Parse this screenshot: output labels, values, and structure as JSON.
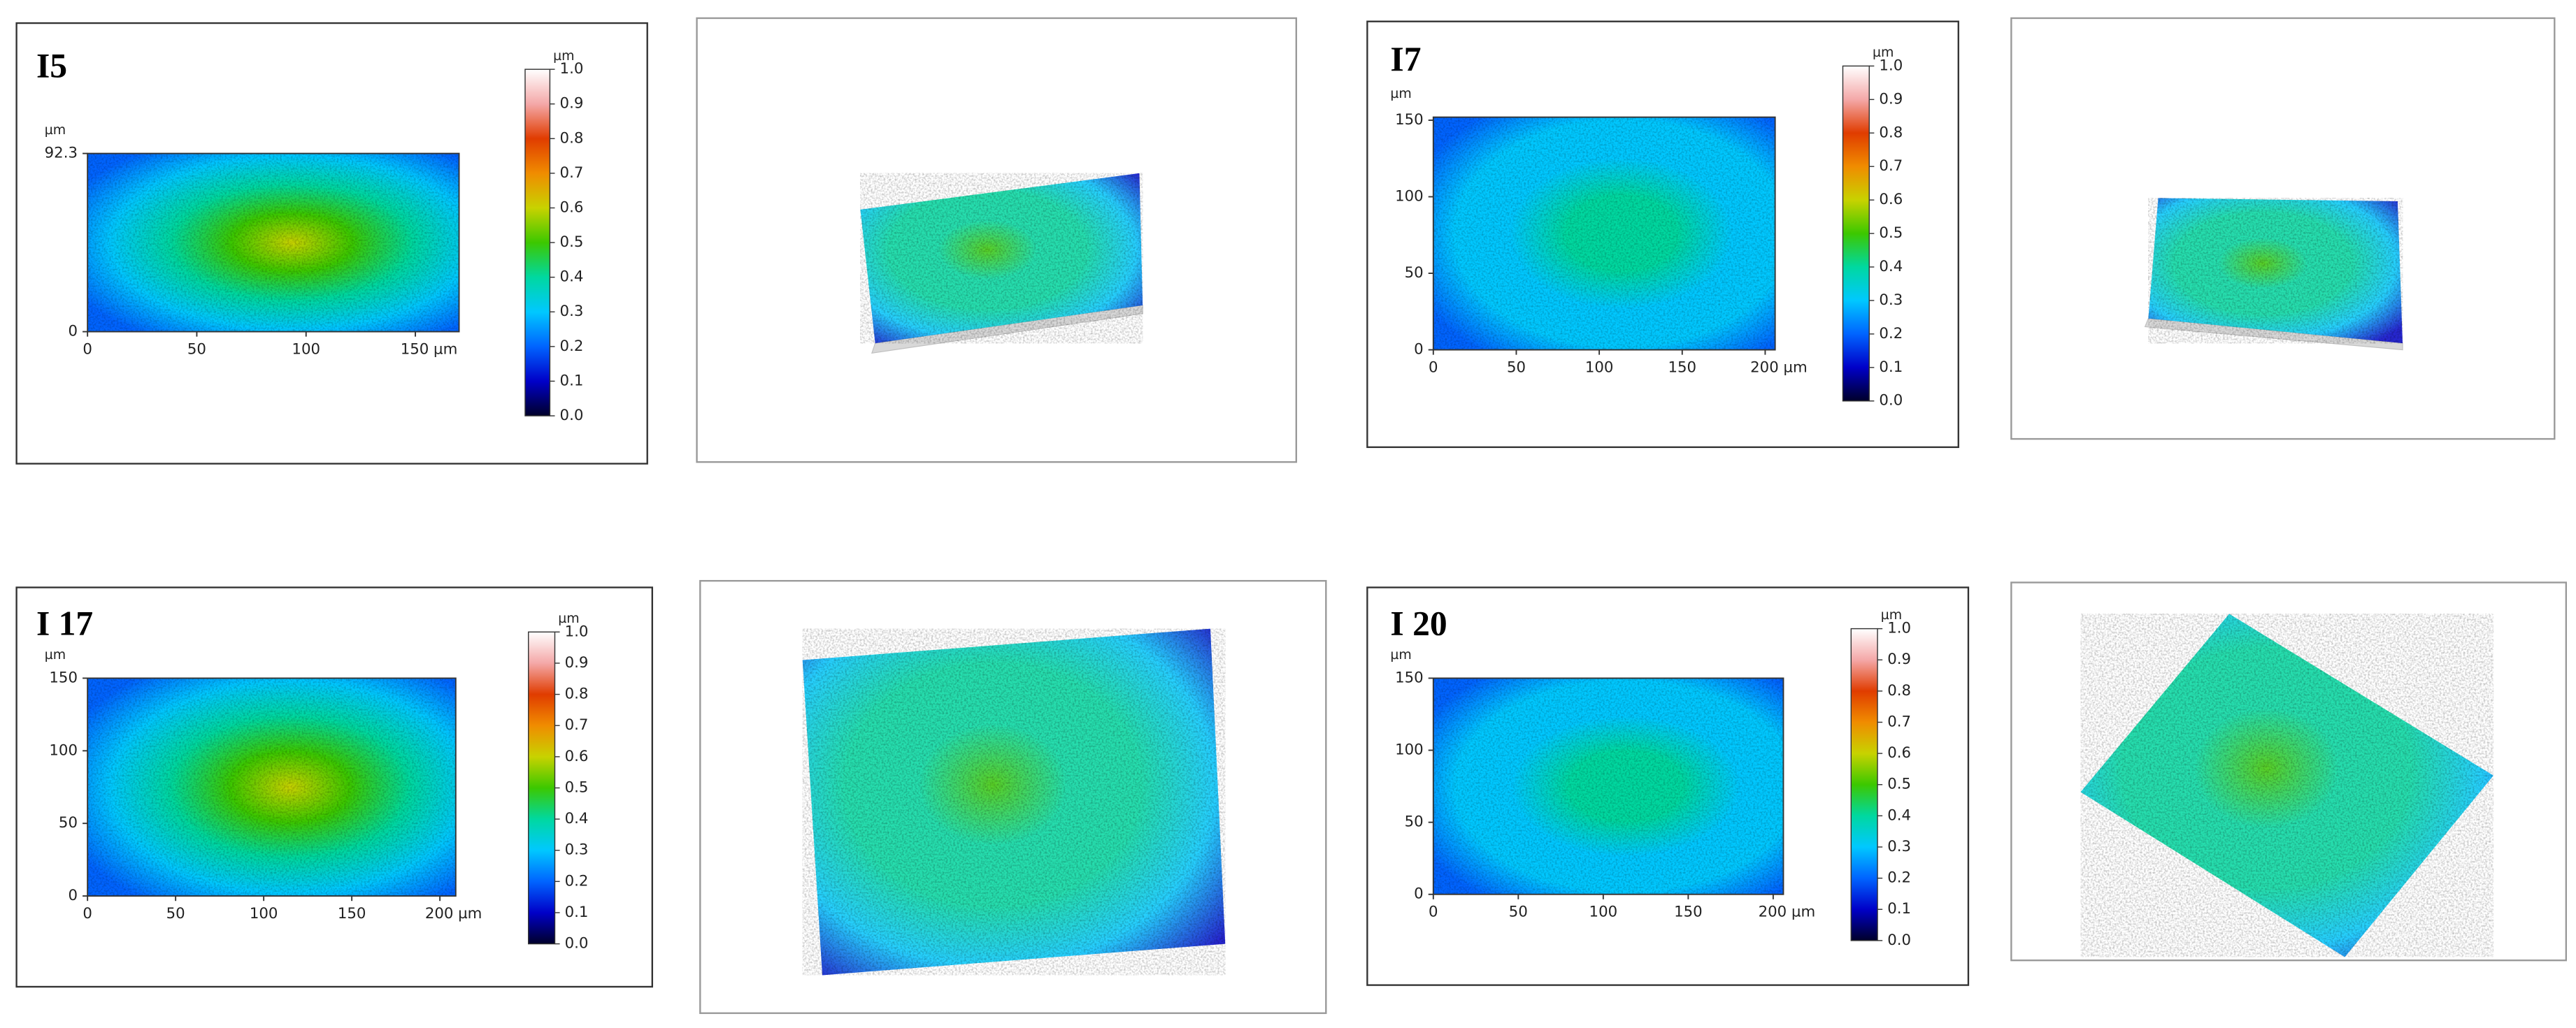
{
  "chart_data": [
    {
      "type": "heatmap",
      "title": "I5",
      "y_unit": "µm",
      "xlim": [
        0,
        170
      ],
      "ylim": [
        0,
        92.3
      ],
      "xticks": [
        0,
        50,
        100,
        {
          "value": 150,
          "label": "150 µm"
        }
      ],
      "yticks": [
        0,
        92.3
      ],
      "colormap": [
        "#00002a",
        "#0000c8",
        "#0064ff",
        "#00c8ff",
        "#00d8a0",
        "#3cc800",
        "#c8d200",
        "#f08c00",
        "#e03c00",
        "#f4a8a8",
        "#ffffff"
      ],
      "colorbar": {
        "unit": "µm",
        "lim": [
          0,
          1
        ],
        "ticks": [
          {
            "value": 0,
            "label": "0.0"
          },
          0.1,
          0.2,
          0.3,
          0.4,
          0.5,
          0.6,
          0.7,
          0.8,
          0.9,
          {
            "value": 1,
            "label": "1.0"
          }
        ]
      }
    },
    {
      "type": "heatmap",
      "title": "I7",
      "y_unit": "µm",
      "xlim": [
        0,
        206
      ],
      "ylim": [
        0,
        152
      ],
      "xticks": [
        0,
        50,
        100,
        150,
        {
          "value": 200,
          "label": "200 µm"
        }
      ],
      "yticks": [
        0,
        50,
        100,
        150
      ],
      "colormap": [
        "#00002a",
        "#0000c8",
        "#0064ff",
        "#00c8ff",
        "#00d8a0",
        "#3cc800",
        "#c8d200",
        "#f08c00",
        "#e03c00",
        "#f4a8a8",
        "#ffffff"
      ],
      "colorbar": {
        "unit": "µm",
        "lim": [
          0,
          1
        ],
        "ticks": [
          {
            "value": 0,
            "label": "0.0"
          },
          0.1,
          0.2,
          0.3,
          0.4,
          0.5,
          0.6,
          0.7,
          0.8,
          0.9,
          {
            "value": 1,
            "label": "1.0"
          }
        ]
      }
    },
    {
      "type": "heatmap",
      "title": "I 17",
      "y_unit": "µm",
      "xlim": [
        0,
        209
      ],
      "ylim": [
        0,
        150
      ],
      "xticks": [
        0,
        50,
        100,
        150,
        {
          "value": 200,
          "label": "200 µm"
        }
      ],
      "yticks": [
        0,
        50,
        100,
        150
      ],
      "colormap": [
        "#00002a",
        "#0000c8",
        "#0064ff",
        "#00c8ff",
        "#00d8a0",
        "#3cc800",
        "#c8d200",
        "#f08c00",
        "#e03c00",
        "#f4a8a8",
        "#ffffff"
      ],
      "colorbar": {
        "unit": "µm",
        "lim": [
          0,
          1
        ],
        "ticks": [
          {
            "value": 0,
            "label": "0.0"
          },
          0.1,
          0.2,
          0.3,
          0.4,
          0.5,
          0.6,
          0.7,
          0.8,
          0.9,
          {
            "value": 1,
            "label": "1.0"
          }
        ]
      }
    },
    {
      "type": "heatmap",
      "title": "I 20",
      "y_unit": "µm",
      "xlim": [
        0,
        206
      ],
      "ylim": [
        0,
        150
      ],
      "xticks": [
        0,
        50,
        100,
        150,
        {
          "value": 200,
          "label": "200 µm"
        }
      ],
      "yticks": [
        0,
        50,
        100,
        150
      ],
      "colormap": [
        "#00002a",
        "#0000c8",
        "#0064ff",
        "#00c8ff",
        "#00d8a0",
        "#3cc800",
        "#c8d200",
        "#f08c00",
        "#e03c00",
        "#f4a8a8",
        "#ffffff"
      ],
      "colorbar": {
        "unit": "µm",
        "lim": [
          0,
          1
        ],
        "ticks": [
          {
            "value": 0,
            "label": "0.0"
          },
          0.1,
          0.2,
          0.3,
          0.4,
          0.5,
          0.6,
          0.7,
          0.8,
          0.9,
          {
            "value": 1,
            "label": "1.0"
          }
        ]
      }
    }
  ]
}
